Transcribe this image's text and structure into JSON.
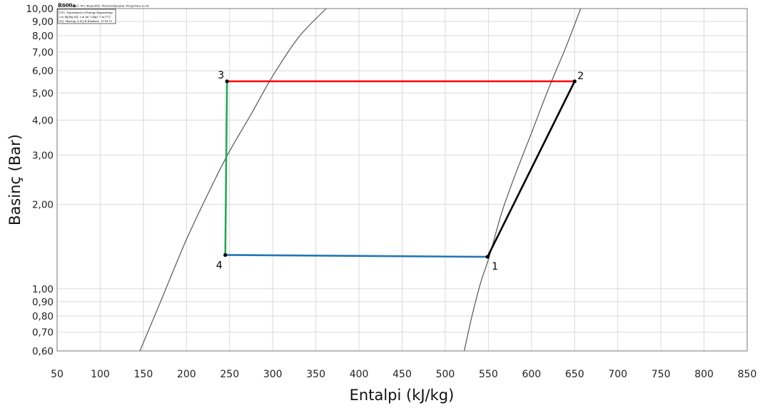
{
  "chart_data": {
    "type": "line",
    "header": {
      "title": "R600a",
      "subtitle": "Ref :W.C.Reynolds: Thermodynamic Properties in SI",
      "info_lines": [
        "DTU, Department of Energy Engineering",
        "s in [kJ/(kg K)]; v in [m^3/kg]; T in [°C]",
        "M.J. Skovrup & H.J.H Knudsen. 19-09-13"
      ]
    },
    "xlabel": "Entalpi (kJ/kg)",
    "ylabel": "Basinç (Bar)",
    "xlim": [
      50,
      850
    ],
    "ylim": [
      0.6,
      10
    ],
    "y_scale": "log",
    "grid": true,
    "x_ticks": [
      50,
      100,
      150,
      200,
      250,
      300,
      350,
      400,
      450,
      500,
      550,
      600,
      650,
      700,
      750,
      800,
      850
    ],
    "x_tick_labels": [
      "50",
      "100",
      "150",
      "200",
      "250",
      "300",
      "350",
      "400",
      "450",
      "500",
      "550",
      "600",
      "650",
      "700",
      "750",
      "800",
      "850"
    ],
    "y_ticks": [
      0.6,
      0.7,
      0.8,
      0.9,
      1.0,
      2.0,
      3.0,
      4.0,
      5.0,
      6.0,
      7.0,
      8.0,
      9.0,
      10.0
    ],
    "y_tick_labels": [
      "0,60",
      "0,70",
      "0,80",
      "0,90",
      "1,00",
      "2,00",
      "3,00",
      "4,00",
      "5,00",
      "6,00",
      "7,00",
      "8,00",
      "9,00",
      "10,00"
    ],
    "points": [
      {
        "label": "1",
        "h": 549,
        "p": 1.3,
        "label_pos": "below-right"
      },
      {
        "label": "2",
        "h": 650,
        "p": 5.5,
        "label_pos": "above-right"
      },
      {
        "label": "3",
        "h": 247,
        "p": 5.5,
        "label_pos": "above-left"
      },
      {
        "label": "4",
        "h": 245,
        "p": 1.32,
        "label_pos": "below-left"
      }
    ],
    "series": [
      {
        "from": "1",
        "to": "2",
        "color": "#000000"
      },
      {
        "from": "2",
        "to": "3",
        "color": "#ff0000"
      },
      {
        "from": "3",
        "to": "4",
        "color": "#22aa55"
      },
      {
        "from": "4",
        "to": "1",
        "color": "#1f77b4"
      }
    ],
    "saturation_curves": [
      {
        "name": "saturated-liquid",
        "color": "#555555",
        "h": [
          146,
          170,
          200,
          230,
          250,
          275,
          300,
          330,
          362
        ],
        "p": [
          0.6,
          0.9,
          1.5,
          2.35,
          3.1,
          4.2,
          5.75,
          7.9,
          10
        ]
      },
      {
        "name": "saturated-vapor",
        "color": "#555555",
        "h": [
          522,
          531,
          541,
          551,
          565,
          580,
          600,
          620,
          640,
          657
        ],
        "p": [
          0.6,
          0.8,
          1.05,
          1.3,
          1.85,
          2.5,
          3.6,
          5.2,
          7.3,
          10
        ]
      }
    ]
  }
}
